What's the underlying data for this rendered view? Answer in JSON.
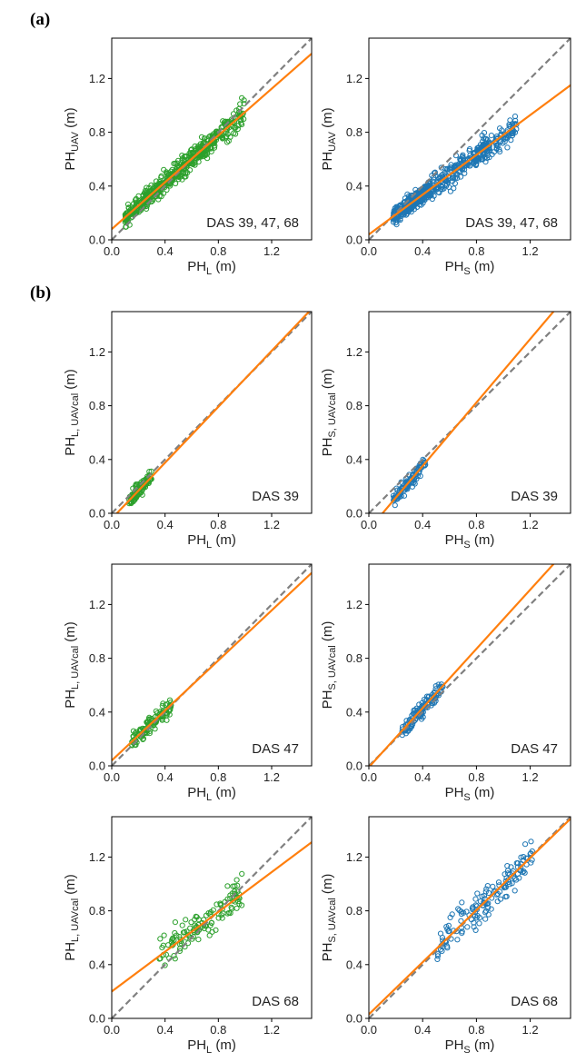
{
  "figure": {
    "panel_labels": [
      "(a)",
      "(b)"
    ]
  },
  "colors": {
    "green": "#2ca02c",
    "blue": "#1f77b4",
    "fit_line": "#ff7f0e",
    "identity_line": "#808080"
  },
  "chart_data": [
    {
      "type": "scatter",
      "panel": "(a)",
      "color": "green",
      "xlabel": "PH",
      "xlabel_sub": "L",
      "xlabel_unit": " (m)",
      "ylabel": "PH",
      "ylabel_sub": "UAV",
      "ylabel_unit": " (m)",
      "annotation": "DAS 39, 47, 68",
      "xlim": [
        0,
        1.5
      ],
      "ylim": [
        0,
        1.5
      ],
      "xticks": [
        "0.0",
        "0.4",
        "0.8",
        "1.2"
      ],
      "yticks": [
        "0.0",
        "0.4",
        "0.8",
        "1.2"
      ],
      "identity_line": true,
      "fit_line": {
        "intercept": 0.08,
        "slope": 0.87
      },
      "clusters": [
        {
          "n": 260,
          "x": [
            0.1,
            0.45
          ],
          "noise": 0.07
        },
        {
          "n": 220,
          "x": [
            0.45,
            0.8
          ],
          "noise": 0.08
        },
        {
          "n": 70,
          "x": [
            0.8,
            1.0
          ],
          "noise": 0.1
        }
      ]
    },
    {
      "type": "scatter",
      "panel": "(a)",
      "color": "blue",
      "xlabel": "PH",
      "xlabel_sub": "S",
      "xlabel_unit": " (m)",
      "ylabel": "PH",
      "ylabel_sub": "UAV",
      "ylabel_unit": " (m)",
      "annotation": "DAS 39, 47, 68",
      "xlim": [
        0,
        1.5
      ],
      "ylim": [
        0,
        1.5
      ],
      "xticks": [
        "0.0",
        "0.4",
        "0.8",
        "1.2"
      ],
      "yticks": [
        "0.0",
        "0.4",
        "0.8",
        "1.2"
      ],
      "identity_line": true,
      "fit_line": {
        "intercept": 0.04,
        "slope": 0.74
      },
      "clusters": [
        {
          "n": 280,
          "x": [
            0.18,
            0.45
          ],
          "noise": 0.06
        },
        {
          "n": 220,
          "x": [
            0.45,
            0.9
          ],
          "noise": 0.09
        },
        {
          "n": 90,
          "x": [
            0.8,
            1.1
          ],
          "noise": 0.1
        }
      ]
    },
    {
      "type": "scatter",
      "panel": "(b)",
      "color": "green",
      "xlabel": "PH",
      "xlabel_sub": "L",
      "xlabel_unit": " (m)",
      "ylabel": "PH",
      "ylabel_sub": "L, UAVcal",
      "ylabel_unit": " (m)",
      "annotation": "DAS 39",
      "xlim": [
        0,
        1.5
      ],
      "ylim": [
        0,
        1.5
      ],
      "xticks": [
        "0.0",
        "0.4",
        "0.8",
        "1.2"
      ],
      "yticks": [
        "0.0",
        "0.4",
        "0.8",
        "1.2"
      ],
      "identity_line": true,
      "fit_line": {
        "intercept": -0.04,
        "slope": 1.04
      },
      "clusters": [
        {
          "n": 110,
          "x": [
            0.13,
            0.3
          ],
          "noise": 0.05
        }
      ]
    },
    {
      "type": "scatter",
      "panel": "(b)",
      "color": "blue",
      "xlabel": "PH",
      "xlabel_sub": "S",
      "xlabel_unit": " (m)",
      "ylabel": "PH",
      "ylabel_sub": "S, UAVcal",
      "ylabel_unit": " (m)",
      "annotation": "DAS 39",
      "xlim": [
        0,
        1.5
      ],
      "ylim": [
        0,
        1.5
      ],
      "xticks": [
        "0.0",
        "0.4",
        "0.8",
        "1.2"
      ],
      "yticks": [
        "0.0",
        "0.4",
        "0.8",
        "1.2"
      ],
      "identity_line": true,
      "fit_line": {
        "intercept": -0.12,
        "slope": 1.18
      },
      "clusters": [
        {
          "n": 110,
          "x": [
            0.18,
            0.42
          ],
          "noise": 0.05
        }
      ]
    },
    {
      "type": "scatter",
      "panel": "(b)",
      "color": "green",
      "xlabel": "PH",
      "xlabel_sub": "L",
      "xlabel_unit": " (m)",
      "ylabel": "PH",
      "ylabel_sub": "L, UAVcal",
      "ylabel_unit": " (m)",
      "annotation": "DAS 47",
      "xlim": [
        0,
        1.5
      ],
      "ylim": [
        0,
        1.5
      ],
      "xticks": [
        "0.0",
        "0.4",
        "0.8",
        "1.2"
      ],
      "yticks": [
        "0.0",
        "0.4",
        "0.8",
        "1.2"
      ],
      "identity_line": true,
      "fit_line": {
        "intercept": 0.04,
        "slope": 0.93
      },
      "clusters": [
        {
          "n": 110,
          "x": [
            0.15,
            0.45
          ],
          "noise": 0.07
        }
      ]
    },
    {
      "type": "scatter",
      "panel": "(b)",
      "color": "blue",
      "xlabel": "PH",
      "xlabel_sub": "S",
      "xlabel_unit": " (m)",
      "ylabel": "PH",
      "ylabel_sub": "S, UAVcal",
      "ylabel_unit": " (m)",
      "annotation": "DAS 47",
      "xlim": [
        0,
        1.5
      ],
      "ylim": [
        0,
        1.5
      ],
      "xticks": [
        "0.0",
        "0.4",
        "0.8",
        "1.2"
      ],
      "yticks": [
        "0.0",
        "0.4",
        "0.8",
        "1.2"
      ],
      "identity_line": true,
      "fit_line": {
        "intercept": -0.01,
        "slope": 1.1
      },
      "clusters": [
        {
          "n": 110,
          "x": [
            0.24,
            0.55
          ],
          "noise": 0.07
        }
      ]
    },
    {
      "type": "scatter",
      "panel": "(b)",
      "color": "green",
      "xlabel": "PH",
      "xlabel_sub": "L",
      "xlabel_unit": " (m)",
      "ylabel": "PH",
      "ylabel_sub": "L, UAVcal",
      "ylabel_unit": " (m)",
      "annotation": "DAS 68",
      "xlim": [
        0,
        1.5
      ],
      "ylim": [
        0,
        1.5
      ],
      "xticks": [
        "0.0",
        "0.4",
        "0.8",
        "1.2"
      ],
      "yticks": [
        "0.0",
        "0.4",
        "0.8",
        "1.2"
      ],
      "identity_line": true,
      "fit_line": {
        "intercept": 0.2,
        "slope": 0.74
      },
      "clusters": [
        {
          "n": 120,
          "x": [
            0.35,
            0.98
          ],
          "noise": 0.13
        }
      ]
    },
    {
      "type": "scatter",
      "panel": "(b)",
      "color": "blue",
      "xlabel": "PH",
      "xlabel_sub": "S",
      "xlabel_unit": " (m)",
      "ylabel": "PH",
      "ylabel_sub": "S, UAVcal",
      "ylabel_unit": " (m)",
      "annotation": "DAS 68",
      "xlim": [
        0,
        1.5
      ],
      "ylim": [
        0,
        1.5
      ],
      "xticks": [
        "0.0",
        "0.4",
        "0.8",
        "1.2"
      ],
      "yticks": [
        "0.0",
        "0.4",
        "0.8",
        "1.2"
      ],
      "identity_line": true,
      "fit_line": {
        "intercept": 0.03,
        "slope": 0.97
      },
      "clusters": [
        {
          "n": 140,
          "x": [
            0.5,
            1.22
          ],
          "noise": 0.13
        }
      ]
    }
  ]
}
